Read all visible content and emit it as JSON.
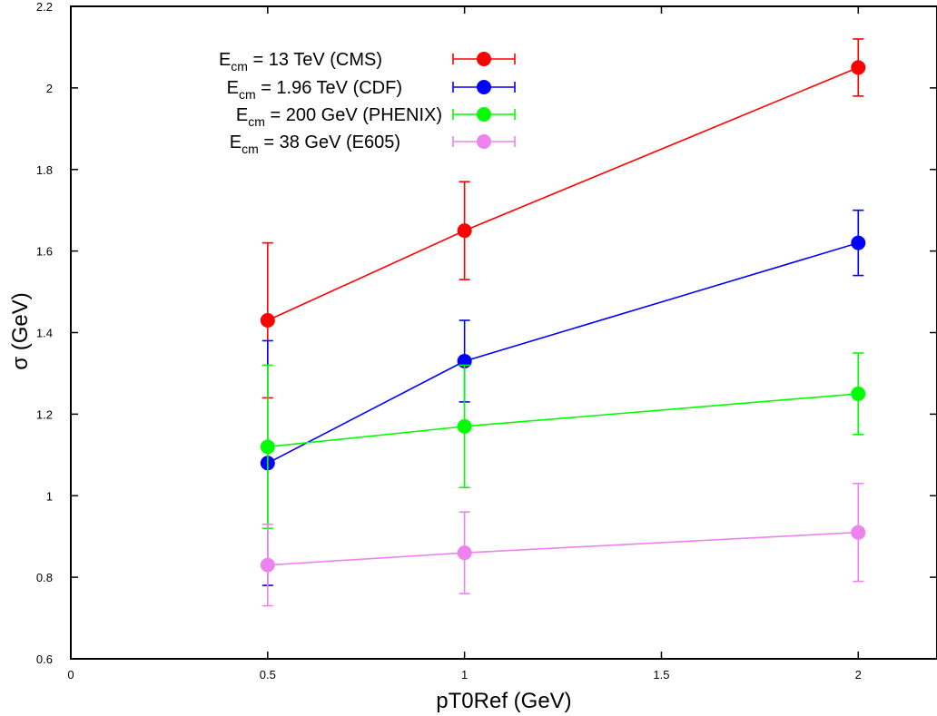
{
  "chart_data": {
    "type": "line",
    "title": "",
    "xlabel": "pT0Ref (GeV)",
    "ylabel": "σ (GeV)",
    "xlim": [
      0,
      2.2
    ],
    "ylim": [
      0.6,
      2.2
    ],
    "xticks": [
      0,
      0.5,
      1,
      1.5,
      2
    ],
    "xtick_labels": [
      "0",
      "0.5",
      "1",
      "1.5",
      "2"
    ],
    "yticks": [
      0.6,
      0.8,
      1,
      1.2,
      1.4,
      1.6,
      1.8,
      2,
      2.2
    ],
    "ytick_labels": [
      "0.6",
      "0.8",
      "1",
      "1.2",
      "1.4",
      "1.6",
      "1.8",
      "2",
      "2.2"
    ],
    "grid": false,
    "legend_position": "top-left",
    "series": [
      {
        "name": "E_cm = 13 TeV (CMS)",
        "legend_main": "E",
        "legend_sub": "cm",
        "legend_rest": " = 13 TeV (CMS)",
        "color": "#ff0000",
        "x": [
          0.5,
          1,
          2
        ],
        "y": [
          1.43,
          1.65,
          2.05
        ],
        "err_low": [
          0.19,
          0.12,
          0.07
        ],
        "err_high": [
          0.19,
          0.12,
          0.07
        ]
      },
      {
        "name": "E_cm = 1.96 TeV (CDF)",
        "legend_main": "E",
        "legend_sub": "cm",
        "legend_rest": " = 1.96 TeV (CDF)",
        "color": "#0000ff",
        "x": [
          0.5,
          1,
          2
        ],
        "y": [
          1.08,
          1.33,
          1.62
        ],
        "err_low": [
          0.3,
          0.1,
          0.08
        ],
        "err_high": [
          0.3,
          0.1,
          0.08
        ]
      },
      {
        "name": "E_cm = 200 GeV (PHENIX)",
        "legend_main": "E",
        "legend_sub": "cm",
        "legend_rest": " = 200 GeV (PHENIX)",
        "color": "#00ff00",
        "x": [
          0.5,
          1,
          2
        ],
        "y": [
          1.12,
          1.17,
          1.25
        ],
        "err_low": [
          0.2,
          0.15,
          0.1
        ],
        "err_high": [
          0.2,
          0.15,
          0.1
        ]
      },
      {
        "name": "E_cm = 38 GeV (E605)",
        "legend_main": "E",
        "legend_sub": "cm",
        "legend_rest": " = 38 GeV (E605)",
        "color": "#ee82ee",
        "x": [
          0.5,
          1,
          2
        ],
        "y": [
          0.83,
          0.86,
          0.91
        ],
        "err_low": [
          0.1,
          0.1,
          0.12
        ],
        "err_high": [
          0.1,
          0.1,
          0.12
        ]
      }
    ]
  }
}
